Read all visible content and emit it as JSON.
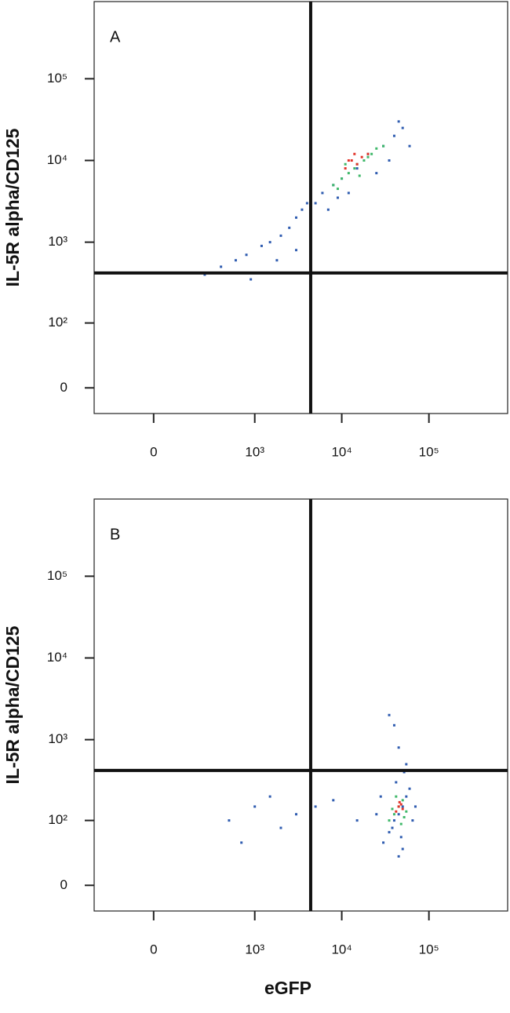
{
  "chart_data": [
    {
      "type": "scatter",
      "panel_label": "A",
      "ylabel": "IL-5R alpha/CD125",
      "xscale": "biexponential",
      "yscale": "biexponential",
      "xlim": [
        -320,
        800000
      ],
      "ylim": [
        -26,
        880000
      ],
      "xticks": [
        0,
        {
          "value": 1000,
          "label": "10³"
        },
        {
          "value": 10000,
          "label": "10⁴"
        },
        {
          "value": 100000,
          "label": "10⁵"
        }
      ],
      "yticks": [
        0,
        {
          "value": 100,
          "label": "10²"
        },
        {
          "value": 1000,
          "label": "10³"
        },
        {
          "value": 10000,
          "label": "10⁴"
        },
        {
          "value": 100000,
          "label": "10⁵"
        }
      ],
      "quadrant_gate": {
        "x": 4400,
        "y": 420
      },
      "series": [
        {
          "color": "#2f5cb0",
          "x": [
            250,
            400,
            600,
            800,
            1200,
            1500,
            2000,
            2500,
            3000,
            3500,
            5000,
            6000,
            8000,
            10000,
            15000,
            20000,
            30000,
            40000,
            50000,
            7000,
            12000,
            25000,
            35000,
            45000,
            9000,
            4000,
            60000,
            3000,
            1800,
            900
          ],
          "y": [
            400,
            500,
            600,
            700,
            900,
            1000,
            1200,
            1500,
            2000,
            2500,
            3000,
            4000,
            5000,
            6000,
            8000,
            12000,
            15000,
            20000,
            25000,
            2500,
            4000,
            7000,
            10000,
            30000,
            3500,
            3000,
            15000,
            800,
            600,
            350
          ]
        },
        {
          "color": "#3fb86a",
          "x": [
            8000,
            10000,
            12000,
            15000,
            18000,
            20000,
            25000,
            9000,
            14000,
            22000,
            30000,
            11000,
            16000
          ],
          "y": [
            5000,
            6000,
            7000,
            9000,
            10000,
            11000,
            14000,
            4500,
            8000,
            12000,
            15000,
            9000,
            6500
          ]
        },
        {
          "color": "#e2342a",
          "x": [
            11000,
            13000,
            15000,
            17000,
            20000,
            14000,
            12000
          ],
          "y": [
            8000,
            10000,
            9000,
            11000,
            12000,
            12000,
            10000
          ]
        }
      ]
    },
    {
      "type": "scatter",
      "panel_label": "B",
      "ylabel": "IL-5R alpha/CD125",
      "xlabel": "eGFP",
      "xscale": "biexponential",
      "yscale": "biexponential",
      "xlim": [
        -320,
        800000
      ],
      "ylim": [
        -26,
        880000
      ],
      "xticks": [
        0,
        {
          "value": 1000,
          "label": "10³"
        },
        {
          "value": 10000,
          "label": "10⁴"
        },
        {
          "value": 100000,
          "label": "10⁵"
        }
      ],
      "yticks": [
        0,
        {
          "value": 100,
          "label": "10²"
        },
        {
          "value": 1000,
          "label": "10³"
        },
        {
          "value": 10000,
          "label": "10⁴"
        },
        {
          "value": 100000,
          "label": "10⁵"
        }
      ],
      "quadrant_gate": {
        "x": 4400,
        "y": 420
      },
      "series": [
        {
          "color": "#2f5cb0",
          "x": [
            30000,
            35000,
            40000,
            45000,
            50000,
            55000,
            60000,
            42000,
            38000,
            48000,
            65000,
            70000,
            25000,
            28000,
            52000,
            45000,
            40000,
            500,
            700,
            1000,
            1500,
            2000,
            3000,
            5000,
            8000,
            15000,
            45000,
            50000,
            55000,
            35000
          ],
          "y": [
            50,
            70,
            100,
            120,
            150,
            200,
            250,
            300,
            80,
            60,
            100,
            150,
            120,
            200,
            400,
            800,
            1500,
            100,
            50,
            150,
            200,
            80,
            120,
            150,
            180,
            100,
            30,
            40,
            500,
            2000
          ]
        },
        {
          "color": "#3fb86a",
          "x": [
            35000,
            40000,
            45000,
            50000,
            55000,
            42000,
            48000,
            38000,
            52000
          ],
          "y": [
            100,
            120,
            150,
            180,
            130,
            200,
            90,
            140,
            110
          ]
        },
        {
          "color": "#e2342a",
          "x": [
            42000,
            45000,
            48000,
            50000,
            46000
          ],
          "y": [
            130,
            150,
            160,
            140,
            170
          ]
        }
      ]
    }
  ]
}
